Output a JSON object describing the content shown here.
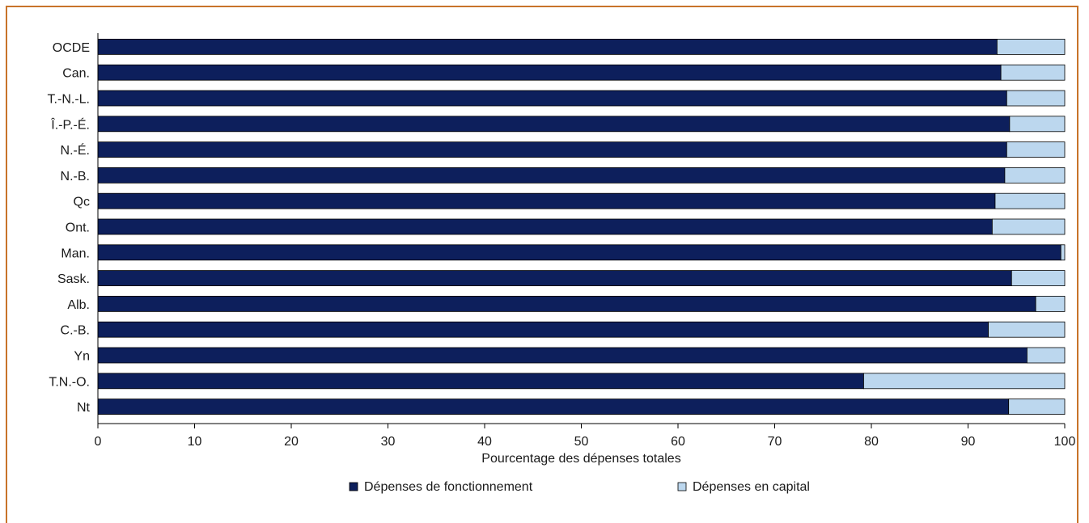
{
  "colors": {
    "frame": "#c8732a",
    "operating": "#0d1f5c",
    "capital": "#bcd7ee",
    "axis": "#000000"
  },
  "chart_data": {
    "type": "bar",
    "orientation": "horizontal",
    "stacked": true,
    "categories": [
      "OCDE",
      "Can.",
      "T.-N.-L.",
      "Î.-P.-É.",
      "N.-É.",
      "N.-B.",
      "Qc",
      "Ont.",
      "Man.",
      "Sask.",
      "Alb.",
      "C.-B.",
      "Yn",
      "T.N.-O.",
      "Nt"
    ],
    "series": [
      {
        "name": "Dépenses de fonctionnement",
        "values": [
          93,
          93.4,
          94,
          94.3,
          94,
          93.8,
          92.8,
          92.5,
          99.6,
          94.5,
          97,
          92.1,
          96.1,
          79.2,
          94.2
        ]
      },
      {
        "name": "Dépenses en capital",
        "values": [
          7,
          6.6,
          6,
          5.7,
          6,
          6.2,
          7.2,
          7.5,
          0.4,
          5.5,
          3,
          7.9,
          3.9,
          20.8,
          5.8
        ]
      }
    ],
    "xlabel": "Pourcentage des dépenses totales",
    "xlim": [
      0,
      100
    ],
    "xticks": [
      0,
      10,
      20,
      30,
      40,
      50,
      60,
      70,
      80,
      90,
      100
    ],
    "legend_position": "bottom",
    "grid": false
  }
}
